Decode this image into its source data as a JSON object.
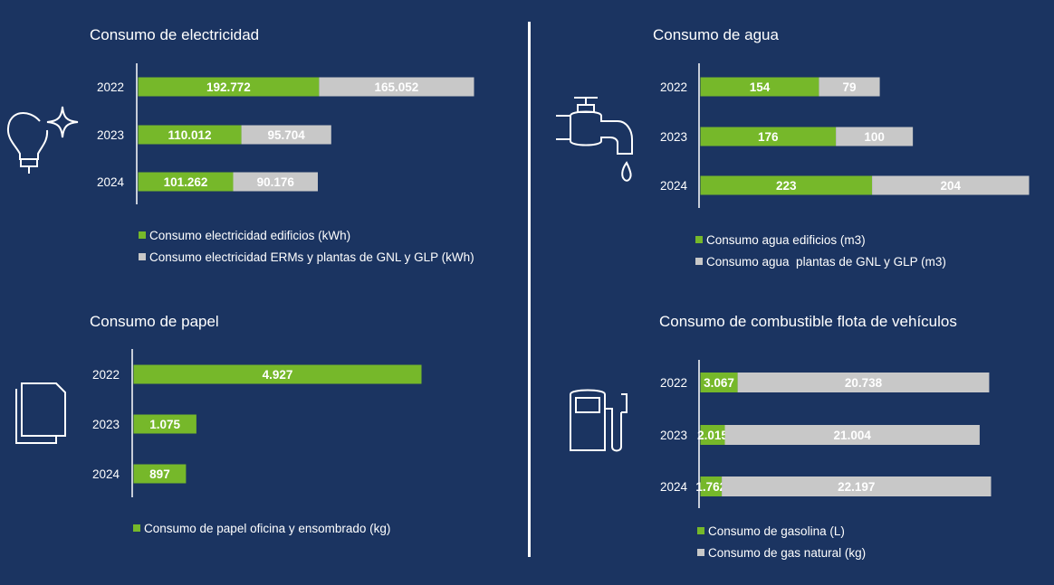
{
  "colors": {
    "background": "#1b3461",
    "green": "#76b82a",
    "gray": "#c8c8c8",
    "white": "#ffffff"
  },
  "chart_data": [
    {
      "type": "bar",
      "orientation": "horizontal-stacked",
      "title": "Consumo de electricidad",
      "categories": [
        "2022",
        "2023",
        "2024"
      ],
      "series": [
        {
          "name": "Consumo electricidad edificios (kWh)",
          "values": [
            192772,
            110012,
            101262
          ],
          "labels": [
            "192.772",
            "110.012",
            "101.262"
          ]
        },
        {
          "name": "Consumo electricidad ERMs y plantas de GNL y GLP (kWh)",
          "values": [
            165052,
            95704,
            90176
          ],
          "labels": [
            "165.052",
            "95.704",
            "90.176"
          ]
        }
      ],
      "xlim": [
        0,
        357824
      ]
    },
    {
      "type": "bar",
      "orientation": "horizontal-stacked",
      "title": "Consumo de agua",
      "categories": [
        "2022",
        "2023",
        "2024"
      ],
      "series": [
        {
          "name": "Consumo agua edificios (m3)",
          "values": [
            154,
            176,
            223
          ],
          "labels": [
            "154",
            "176",
            "223"
          ]
        },
        {
          "name": "Consumo agua  plantas de GNL y GLP (m3)",
          "values": [
            79,
            100,
            204
          ],
          "labels": [
            "79",
            "100",
            "204"
          ]
        }
      ],
      "xlim": [
        0,
        427
      ]
    },
    {
      "type": "bar",
      "orientation": "horizontal",
      "title": "Consumo de papel",
      "categories": [
        "2022",
        "2023",
        "2024"
      ],
      "series": [
        {
          "name": "Consumo de papel oficina y ensombrado (kg)",
          "values": [
            4927,
            1075,
            897
          ],
          "labels": [
            "4.927",
            "1.075",
            "897"
          ]
        }
      ],
      "xlim": [
        0,
        4927
      ]
    },
    {
      "type": "bar",
      "orientation": "horizontal-stacked",
      "title": "Consumo de combustible flota de vehículos",
      "categories": [
        "2022",
        "2023",
        "2024"
      ],
      "series": [
        {
          "name": "Consumo de gasolina (L)",
          "values": [
            3067,
            2015,
            1762
          ],
          "labels": [
            "3.067",
            "2.015",
            "1.762"
          ]
        },
        {
          "name": "Consumo de gas natural (kg)",
          "values": [
            20738,
            21004,
            22197
          ],
          "labels": [
            "20.738",
            "21.004",
            "22.197"
          ]
        }
      ],
      "xlim": [
        0,
        23959
      ]
    }
  ]
}
